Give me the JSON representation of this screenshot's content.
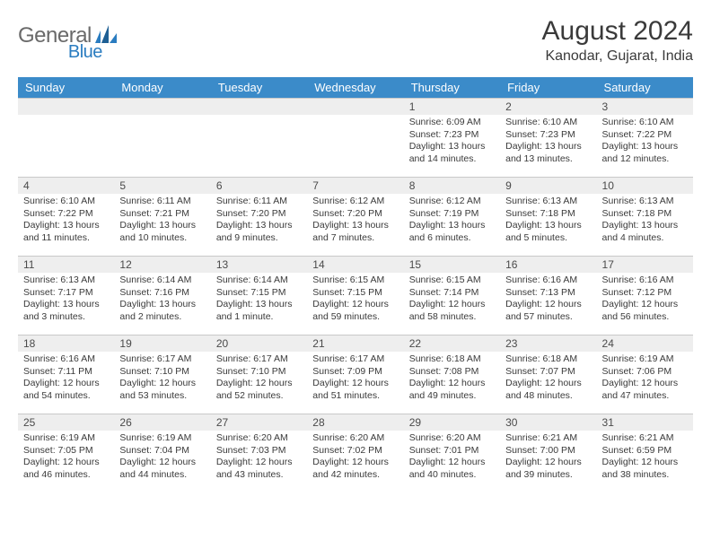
{
  "logo": {
    "general": "General",
    "blue": "Blue"
  },
  "title": "August 2024",
  "location": "Kanodar, Gujarat, India",
  "colors": {
    "header_bg": "#3b8bc9",
    "header_text": "#ffffff",
    "daynum_bg": "#eeeeee",
    "border": "#c9c9c9",
    "text": "#3a3a3a",
    "logo_gray": "#6a6a6a",
    "logo_blue": "#2a7cc0"
  },
  "weekdays": [
    "Sunday",
    "Monday",
    "Tuesday",
    "Wednesday",
    "Thursday",
    "Friday",
    "Saturday"
  ],
  "weeks": [
    [
      {
        "day": "",
        "sunrise": "",
        "sunset": "",
        "daylight": ""
      },
      {
        "day": "",
        "sunrise": "",
        "sunset": "",
        "daylight": ""
      },
      {
        "day": "",
        "sunrise": "",
        "sunset": "",
        "daylight": ""
      },
      {
        "day": "",
        "sunrise": "",
        "sunset": "",
        "daylight": ""
      },
      {
        "day": "1",
        "sunrise": "Sunrise: 6:09 AM",
        "sunset": "Sunset: 7:23 PM",
        "daylight": "Daylight: 13 hours and 14 minutes."
      },
      {
        "day": "2",
        "sunrise": "Sunrise: 6:10 AM",
        "sunset": "Sunset: 7:23 PM",
        "daylight": "Daylight: 13 hours and 13 minutes."
      },
      {
        "day": "3",
        "sunrise": "Sunrise: 6:10 AM",
        "sunset": "Sunset: 7:22 PM",
        "daylight": "Daylight: 13 hours and 12 minutes."
      }
    ],
    [
      {
        "day": "4",
        "sunrise": "Sunrise: 6:10 AM",
        "sunset": "Sunset: 7:22 PM",
        "daylight": "Daylight: 13 hours and 11 minutes."
      },
      {
        "day": "5",
        "sunrise": "Sunrise: 6:11 AM",
        "sunset": "Sunset: 7:21 PM",
        "daylight": "Daylight: 13 hours and 10 minutes."
      },
      {
        "day": "6",
        "sunrise": "Sunrise: 6:11 AM",
        "sunset": "Sunset: 7:20 PM",
        "daylight": "Daylight: 13 hours and 9 minutes."
      },
      {
        "day": "7",
        "sunrise": "Sunrise: 6:12 AM",
        "sunset": "Sunset: 7:20 PM",
        "daylight": "Daylight: 13 hours and 7 minutes."
      },
      {
        "day": "8",
        "sunrise": "Sunrise: 6:12 AM",
        "sunset": "Sunset: 7:19 PM",
        "daylight": "Daylight: 13 hours and 6 minutes."
      },
      {
        "day": "9",
        "sunrise": "Sunrise: 6:13 AM",
        "sunset": "Sunset: 7:18 PM",
        "daylight": "Daylight: 13 hours and 5 minutes."
      },
      {
        "day": "10",
        "sunrise": "Sunrise: 6:13 AM",
        "sunset": "Sunset: 7:18 PM",
        "daylight": "Daylight: 13 hours and 4 minutes."
      }
    ],
    [
      {
        "day": "11",
        "sunrise": "Sunrise: 6:13 AM",
        "sunset": "Sunset: 7:17 PM",
        "daylight": "Daylight: 13 hours and 3 minutes."
      },
      {
        "day": "12",
        "sunrise": "Sunrise: 6:14 AM",
        "sunset": "Sunset: 7:16 PM",
        "daylight": "Daylight: 13 hours and 2 minutes."
      },
      {
        "day": "13",
        "sunrise": "Sunrise: 6:14 AM",
        "sunset": "Sunset: 7:15 PM",
        "daylight": "Daylight: 13 hours and 1 minute."
      },
      {
        "day": "14",
        "sunrise": "Sunrise: 6:15 AM",
        "sunset": "Sunset: 7:15 PM",
        "daylight": "Daylight: 12 hours and 59 minutes."
      },
      {
        "day": "15",
        "sunrise": "Sunrise: 6:15 AM",
        "sunset": "Sunset: 7:14 PM",
        "daylight": "Daylight: 12 hours and 58 minutes."
      },
      {
        "day": "16",
        "sunrise": "Sunrise: 6:16 AM",
        "sunset": "Sunset: 7:13 PM",
        "daylight": "Daylight: 12 hours and 57 minutes."
      },
      {
        "day": "17",
        "sunrise": "Sunrise: 6:16 AM",
        "sunset": "Sunset: 7:12 PM",
        "daylight": "Daylight: 12 hours and 56 minutes."
      }
    ],
    [
      {
        "day": "18",
        "sunrise": "Sunrise: 6:16 AM",
        "sunset": "Sunset: 7:11 PM",
        "daylight": "Daylight: 12 hours and 54 minutes."
      },
      {
        "day": "19",
        "sunrise": "Sunrise: 6:17 AM",
        "sunset": "Sunset: 7:10 PM",
        "daylight": "Daylight: 12 hours and 53 minutes."
      },
      {
        "day": "20",
        "sunrise": "Sunrise: 6:17 AM",
        "sunset": "Sunset: 7:10 PM",
        "daylight": "Daylight: 12 hours and 52 minutes."
      },
      {
        "day": "21",
        "sunrise": "Sunrise: 6:17 AM",
        "sunset": "Sunset: 7:09 PM",
        "daylight": "Daylight: 12 hours and 51 minutes."
      },
      {
        "day": "22",
        "sunrise": "Sunrise: 6:18 AM",
        "sunset": "Sunset: 7:08 PM",
        "daylight": "Daylight: 12 hours and 49 minutes."
      },
      {
        "day": "23",
        "sunrise": "Sunrise: 6:18 AM",
        "sunset": "Sunset: 7:07 PM",
        "daylight": "Daylight: 12 hours and 48 minutes."
      },
      {
        "day": "24",
        "sunrise": "Sunrise: 6:19 AM",
        "sunset": "Sunset: 7:06 PM",
        "daylight": "Daylight: 12 hours and 47 minutes."
      }
    ],
    [
      {
        "day": "25",
        "sunrise": "Sunrise: 6:19 AM",
        "sunset": "Sunset: 7:05 PM",
        "daylight": "Daylight: 12 hours and 46 minutes."
      },
      {
        "day": "26",
        "sunrise": "Sunrise: 6:19 AM",
        "sunset": "Sunset: 7:04 PM",
        "daylight": "Daylight: 12 hours and 44 minutes."
      },
      {
        "day": "27",
        "sunrise": "Sunrise: 6:20 AM",
        "sunset": "Sunset: 7:03 PM",
        "daylight": "Daylight: 12 hours and 43 minutes."
      },
      {
        "day": "28",
        "sunrise": "Sunrise: 6:20 AM",
        "sunset": "Sunset: 7:02 PM",
        "daylight": "Daylight: 12 hours and 42 minutes."
      },
      {
        "day": "29",
        "sunrise": "Sunrise: 6:20 AM",
        "sunset": "Sunset: 7:01 PM",
        "daylight": "Daylight: 12 hours and 40 minutes."
      },
      {
        "day": "30",
        "sunrise": "Sunrise: 6:21 AM",
        "sunset": "Sunset: 7:00 PM",
        "daylight": "Daylight: 12 hours and 39 minutes."
      },
      {
        "day": "31",
        "sunrise": "Sunrise: 6:21 AM",
        "sunset": "Sunset: 6:59 PM",
        "daylight": "Daylight: 12 hours and 38 minutes."
      }
    ]
  ]
}
